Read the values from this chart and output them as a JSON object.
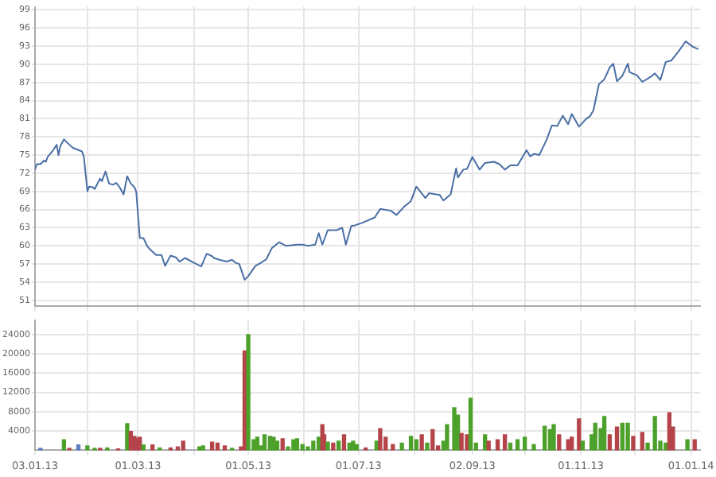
{
  "chart_data": [
    {
      "type": "line",
      "color": "#4a6fa5",
      "tick_labels": "y",
      "grid": true,
      "xlim": [
        "2013-01-03",
        "2014-01-06"
      ],
      "ylim": [
        50,
        99.5
      ],
      "xticks": [
        {
          "value": "2013-01-03",
          "label": null
        },
        {
          "value": "2013-02-01",
          "label": null
        },
        {
          "value": "2013-03-01",
          "label": null
        },
        {
          "value": "2013-04-01",
          "label": null
        },
        {
          "value": "2013-05-01",
          "label": null
        },
        {
          "value": "2013-06-01",
          "label": null
        },
        {
          "value": "2013-07-01",
          "label": null
        },
        {
          "value": "2013-08-01",
          "label": null
        },
        {
          "value": "2013-09-02",
          "label": null
        },
        {
          "value": "2013-10-01",
          "label": null
        },
        {
          "value": "2013-11-01",
          "label": null
        },
        {
          "value": "2013-12-01",
          "label": null
        },
        {
          "value": "2014-01-01",
          "label": null
        }
      ],
      "yticks": [
        51,
        54,
        57,
        60,
        63,
        66,
        69,
        72,
        75,
        78,
        81,
        84,
        87,
        90,
        93,
        96,
        99
      ],
      "x": [
        "2013-01-03",
        "2013-01-04",
        "2013-01-06",
        "2013-01-08",
        "2013-01-09",
        "2013-01-10",
        "2013-01-13",
        "2013-01-15",
        "2013-01-16",
        "2013-01-17",
        "2013-01-19",
        "2013-01-21",
        "2013-01-24",
        "2013-01-29",
        "2013-01-30",
        "2013-02-01",
        "2013-02-02",
        "2013-02-04",
        "2013-02-05",
        "2013-02-08",
        "2013-02-09",
        "2013-02-11",
        "2013-02-13",
        "2013-02-15",
        "2013-02-17",
        "2013-02-19",
        "2013-02-21",
        "2013-02-23",
        "2013-02-25",
        "2013-02-27",
        "2013-02-28",
        "2013-03-02",
        "2013-03-04",
        "2013-03-06",
        "2013-03-08",
        "2013-03-11",
        "2013-03-14",
        "2013-03-16",
        "2013-03-19",
        "2013-03-22",
        "2013-03-24",
        "2013-03-27",
        "2013-04-01",
        "2013-04-05",
        "2013-04-08",
        "2013-04-11",
        "2013-04-12",
        "2013-04-15",
        "2013-04-19",
        "2013-04-22",
        "2013-04-24",
        "2013-04-26",
        "2013-04-29",
        "2013-05-01",
        "2013-05-05",
        "2013-05-08",
        "2013-05-11",
        "2013-05-14",
        "2013-05-18",
        "2013-05-22",
        "2013-05-28",
        "2013-05-31",
        "2013-06-03",
        "2013-06-07",
        "2013-06-09",
        "2013-06-11",
        "2013-06-14",
        "2013-06-19",
        "2013-06-22",
        "2013-06-24",
        "2013-06-27",
        "2013-06-29",
        "2013-07-03",
        "2013-07-10",
        "2013-07-13",
        "2013-07-19",
        "2013-07-22",
        "2013-07-26",
        "2013-07-30",
        "2013-08-02",
        "2013-08-07",
        "2013-08-09",
        "2013-08-15",
        "2013-08-17",
        "2013-08-21",
        "2013-08-24",
        "2013-08-25",
        "2013-08-28",
        "2013-08-30",
        "2013-09-02",
        "2013-09-06",
        "2013-09-09",
        "2013-09-14",
        "2013-09-17",
        "2013-09-20",
        "2013-09-23",
        "2013-09-27",
        "2013-10-02",
        "2013-10-04",
        "2013-10-06",
        "2013-10-09",
        "2013-10-13",
        "2013-10-16",
        "2013-10-19",
        "2013-10-22",
        "2013-10-25",
        "2013-10-27",
        "2013-10-31",
        "2013-11-04",
        "2013-11-06",
        "2013-11-08",
        "2013-11-11",
        "2013-11-14",
        "2013-11-17",
        "2013-11-19",
        "2013-11-21",
        "2013-11-24",
        "2013-11-27",
        "2013-11-28",
        "2013-12-02",
        "2013-12-05",
        "2013-12-10",
        "2013-12-12",
        "2013-12-15",
        "2013-12-18",
        "2013-12-21",
        "2013-12-25",
        "2013-12-29",
        "2014-01-02",
        "2014-01-05"
      ],
      "values": [
        72.6,
        73.5,
        73.5,
        74.1,
        73.9,
        74.7,
        75.8,
        76.7,
        75.0,
        76.5,
        77.6,
        77.0,
        76.2,
        75.6,
        74.8,
        69.0,
        69.8,
        69.7,
        69.4,
        71.1,
        70.7,
        72.3,
        70.3,
        70.1,
        70.4,
        69.6,
        68.5,
        71.5,
        70.3,
        69.7,
        69.0,
        61.3,
        61.3,
        60.0,
        59.3,
        58.5,
        58.5,
        56.7,
        58.4,
        58.1,
        57.4,
        58.0,
        57.2,
        56.6,
        58.7,
        58.3,
        58.0,
        57.7,
        57.4,
        57.7,
        57.2,
        57.0,
        54.4,
        55.0,
        56.7,
        57.2,
        57.8,
        59.6,
        60.6,
        60.0,
        60.2,
        60.2,
        60.0,
        60.2,
        62.1,
        60.2,
        62.6,
        62.6,
        63.0,
        60.2,
        63.3,
        63.4,
        63.8,
        64.7,
        66.1,
        65.8,
        65.1,
        66.4,
        67.4,
        69.8,
        67.9,
        68.7,
        68.4,
        67.5,
        68.5,
        72.8,
        71.3,
        72.6,
        72.7,
        74.7,
        72.6,
        73.7,
        73.9,
        73.5,
        72.6,
        73.3,
        73.3,
        75.8,
        74.8,
        75.2,
        75.0,
        77.5,
        79.9,
        79.8,
        81.5,
        80.1,
        81.8,
        79.7,
        81.0,
        81.4,
        82.4,
        86.7,
        87.5,
        89.5,
        90.1,
        87.2,
        88.1,
        90.1,
        88.7,
        88.2,
        87.1,
        88.0,
        88.5,
        87.4,
        90.4,
        90.6,
        92.1,
        93.8,
        92.9,
        92.5
      ]
    },
    {
      "type": "bar",
      "grid": true,
      "xlim": [
        "2013-01-03",
        "2014-01-06"
      ],
      "ylim": [
        0,
        27000
      ],
      "xticks": [
        {
          "value": "2013-01-03",
          "label": "03.01.13"
        },
        {
          "value": "2013-02-01",
          "label": null
        },
        {
          "value": "2013-03-01",
          "label": "01.03.13"
        },
        {
          "value": "2013-04-01",
          "label": null
        },
        {
          "value": "2013-05-01",
          "label": "01.05.13"
        },
        {
          "value": "2013-06-01",
          "label": null
        },
        {
          "value": "2013-07-01",
          "label": "01.07.13"
        },
        {
          "value": "2013-08-01",
          "label": null
        },
        {
          "value": "2013-09-02",
          "label": "02.09.13"
        },
        {
          "value": "2013-10-01",
          "label": null
        },
        {
          "value": "2013-11-01",
          "label": "01.11.13"
        },
        {
          "value": "2013-12-01",
          "label": null
        },
        {
          "value": "2014-01-01",
          "label": "01.01.14"
        }
      ],
      "yticks": [
        4000,
        8000,
        12000,
        16000,
        20000,
        24000
      ],
      "x": [
        "2013-01-06",
        "2013-01-19",
        "2013-01-22",
        "2013-01-27",
        "2013-02-01",
        "2013-02-05",
        "2013-02-08",
        "2013-02-12",
        "2013-02-18",
        "2013-02-23",
        "2013-02-25",
        "2013-02-27",
        "2013-02-28",
        "2013-03-02",
        "2013-03-04",
        "2013-03-09",
        "2013-03-13",
        "2013-03-19",
        "2013-03-23",
        "2013-03-26",
        "2013-04-04",
        "2013-04-06",
        "2013-04-11",
        "2013-04-14",
        "2013-04-18",
        "2013-04-22",
        "2013-04-27",
        "2013-04-29",
        "2013-05-01",
        "2013-05-04",
        "2013-05-06",
        "2013-05-08",
        "2013-05-10",
        "2013-05-13",
        "2013-05-15",
        "2013-05-17",
        "2013-05-20",
        "2013-05-23",
        "2013-05-26",
        "2013-05-28",
        "2013-05-31",
        "2013-06-03",
        "2013-06-06",
        "2013-06-09",
        "2013-06-11",
        "2013-06-12",
        "2013-06-14",
        "2013-06-17",
        "2013-06-20",
        "2013-06-23",
        "2013-06-26",
        "2013-06-28",
        "2013-06-30",
        "2013-07-05",
        "2013-07-11",
        "2013-07-13",
        "2013-07-16",
        "2013-07-20",
        "2013-07-25",
        "2013-07-30",
        "2013-08-02",
        "2013-08-05",
        "2013-08-08",
        "2013-08-11",
        "2013-08-14",
        "2013-08-17",
        "2013-08-19",
        "2013-08-23",
        "2013-08-25",
        "2013-08-27",
        "2013-08-30",
        "2013-09-01",
        "2013-09-04",
        "2013-09-09",
        "2013-09-11",
        "2013-09-16",
        "2013-09-20",
        "2013-09-23",
        "2013-09-27",
        "2013-10-01",
        "2013-10-06",
        "2013-10-12",
        "2013-10-15",
        "2013-10-17",
        "2013-10-20",
        "2013-10-25",
        "2013-10-27",
        "2013-10-31",
        "2013-11-02",
        "2013-11-07",
        "2013-11-09",
        "2013-11-12",
        "2013-11-14",
        "2013-11-17",
        "2013-11-21",
        "2013-11-24",
        "2013-11-27",
        "2013-11-30",
        "2013-12-05",
        "2013-12-08",
        "2013-12-12",
        "2013-12-15",
        "2013-12-18",
        "2013-12-20",
        "2013-12-22",
        "2013-12-30",
        "2014-01-03"
      ],
      "values": [
        400,
        2200,
        400,
        1100,
        900,
        400,
        400,
        500,
        300,
        5500,
        3900,
        2900,
        2500,
        2700,
        1100,
        1100,
        500,
        500,
        700,
        1900,
        700,
        900,
        1700,
        1500,
        900,
        400,
        700,
        20600,
        24000,
        2200,
        2700,
        900,
        3200,
        2900,
        2700,
        1900,
        2400,
        700,
        2200,
        2400,
        1200,
        700,
        1900,
        2700,
        5300,
        3200,
        1700,
        1500,
        1900,
        3200,
        1500,
        1900,
        1200,
        500,
        1900,
        4500,
        2700,
        1200,
        1500,
        2900,
        2200,
        3200,
        1500,
        4300,
        900,
        1900,
        5300,
        8800,
        7300,
        3500,
        3200,
        10800,
        1500,
        3200,
        1900,
        2200,
        3200,
        1500,
        2200,
        2700,
        1200,
        5000,
        4300,
        5300,
        3200,
        2200,
        2700,
        6500,
        1900,
        3200,
        5600,
        4500,
        7000,
        3200,
        4800,
        5600,
        5600,
        2900,
        3700,
        1500,
        7000,
        1900,
        1500,
        7800,
        4800,
        2200,
        2200
      ],
      "colors": [
        "#5b7cc4",
        "#4ca12a",
        "#b5444a",
        "#5b7cc4",
        "#4ca12a",
        "#4ca12a",
        "#b5444a",
        "#4ca12a",
        "#b5444a",
        "#4ca12a",
        "#b5444a",
        "#b5444a",
        "#b5444a",
        "#b5444a",
        "#4ca12a",
        "#b5444a",
        "#4ca12a",
        "#b5444a",
        "#b5444a",
        "#b5444a",
        "#4ca12a",
        "#4ca12a",
        "#b5444a",
        "#b5444a",
        "#b5444a",
        "#4ca12a",
        "#b5444a",
        "#b5444a",
        "#4ca12a",
        "#4ca12a",
        "#4ca12a",
        "#4ca12a",
        "#4ca12a",
        "#4ca12a",
        "#4ca12a",
        "#4ca12a",
        "#b5444a",
        "#4ca12a",
        "#4ca12a",
        "#4ca12a",
        "#4ca12a",
        "#4ca12a",
        "#4ca12a",
        "#4ca12a",
        "#b5444a",
        "#b5444a",
        "#4ca12a",
        "#b5444a",
        "#4ca12a",
        "#b5444a",
        "#4ca12a",
        "#4ca12a",
        "#4ca12a",
        "#b5444a",
        "#4ca12a",
        "#b5444a",
        "#b5444a",
        "#b5444a",
        "#4ca12a",
        "#4ca12a",
        "#4ca12a",
        "#b5444a",
        "#4ca12a",
        "#b5444a",
        "#b5444a",
        "#4ca12a",
        "#4ca12a",
        "#4ca12a",
        "#4ca12a",
        "#b5444a",
        "#b5444a",
        "#4ca12a",
        "#4ca12a",
        "#4ca12a",
        "#b5444a",
        "#b5444a",
        "#b5444a",
        "#4ca12a",
        "#4ca12a",
        "#4ca12a",
        "#4ca12a",
        "#4ca12a",
        "#4ca12a",
        "#4ca12a",
        "#b5444a",
        "#b5444a",
        "#b5444a",
        "#b5444a",
        "#4ca12a",
        "#4ca12a",
        "#4ca12a",
        "#4ca12a",
        "#4ca12a",
        "#b5444a",
        "#b5444a",
        "#4ca12a",
        "#4ca12a",
        "#b5444a",
        "#b5444a",
        "#4ca12a",
        "#4ca12a",
        "#4ca12a",
        "#4ca12a",
        "#b5444a",
        "#b5444a",
        "#4ca12a",
        "#b5444a"
      ]
    }
  ]
}
